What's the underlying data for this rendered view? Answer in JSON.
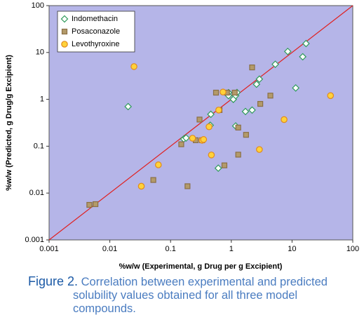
{
  "chart_data": {
    "type": "scatter",
    "xlabel": "%w/w (Experimental, g Drug per g Excipient)",
    "ylabel": "%w/w (Predicted, g Drug/g Excipient)",
    "xscale": "log",
    "yscale": "log",
    "xlim": [
      0.001,
      100
    ],
    "ylim": [
      0.001,
      100
    ],
    "xticks": [
      0.001,
      0.01,
      0.1,
      1,
      10,
      100
    ],
    "yticks": [
      0.001,
      0.01,
      0.1,
      1,
      10,
      100
    ],
    "background": "#b5b5e8",
    "identity_line": {
      "color": "#e02020"
    },
    "legend": "upper left",
    "series": [
      {
        "name": "Indomethacin",
        "marker": "diamond",
        "color": "#ffffff",
        "edgecolor": "#2e9a5a",
        "x": [
          0.02,
          0.165,
          0.18,
          0.45,
          0.46,
          0.61,
          0.9,
          0.9,
          1.08,
          1.18,
          1.24,
          1.18,
          1.71,
          2.2,
          2.6,
          2.9,
          5.3,
          8.5,
          11.5,
          15,
          17
        ],
        "values": [
          0.7,
          0.143,
          0.15,
          0.28,
          0.48,
          0.034,
          1.39,
          1.2,
          1.0,
          1.2,
          1.4,
          0.27,
          0.55,
          0.59,
          2.1,
          2.7,
          5.6,
          10.5,
          1.75,
          8.1,
          15.5
        ]
      },
      {
        "name": "Posaconazole",
        "marker": "square",
        "color": "#b39a6a",
        "edgecolor": "#8a6f45",
        "x": [
          0.0046,
          0.0058,
          0.052,
          0.15,
          0.19,
          0.26,
          0.3,
          0.33,
          0.56,
          0.64,
          0.77,
          0.85,
          1.14,
          1.3,
          1.3,
          1.75,
          2.2,
          3.0,
          4.4
        ],
        "values": [
          0.0056,
          0.0058,
          0.019,
          0.11,
          0.014,
          0.134,
          0.37,
          0.134,
          1.39,
          0.59,
          0.039,
          1.39,
          1.39,
          0.25,
          0.066,
          0.175,
          4.8,
          0.8,
          1.2
        ]
      },
      {
        "name": "Levothyroxine",
        "marker": "circle",
        "color": "#ffd23a",
        "edgecolor": "#e08a1e",
        "x": [
          0.025,
          0.033,
          0.063,
          0.23,
          0.33,
          0.35,
          0.43,
          0.47,
          0.62,
          0.73,
          2.9,
          7.4,
          43
        ],
        "values": [
          5.0,
          0.014,
          0.04,
          0.148,
          0.134,
          0.139,
          0.26,
          0.065,
          0.59,
          1.43,
          0.085,
          0.37,
          1.2
        ]
      }
    ]
  },
  "caption": {
    "label": "Figure 2.",
    "lines": [
      "Correlation between experimental and predicted",
      "solubility values obtained for all three model",
      "compounds."
    ]
  }
}
